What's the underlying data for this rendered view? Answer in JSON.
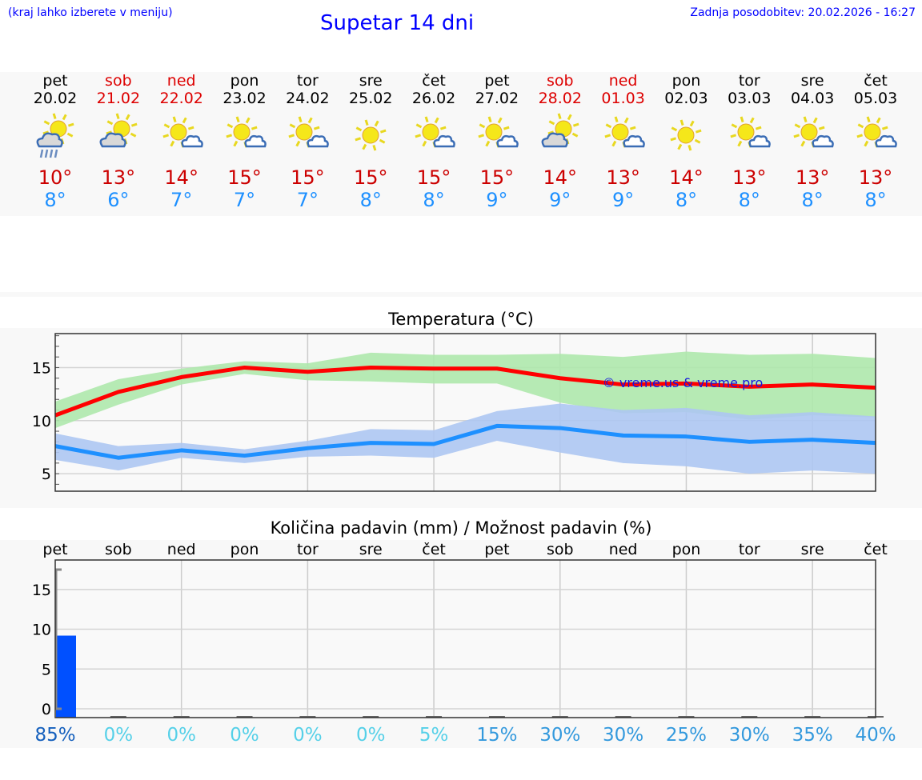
{
  "header": {
    "hint": "(kraj lahko izberete v meniju)",
    "title": "Supetar 14 dni",
    "updated": "Zadnja posodobitev: 20.02.2026 - 16:27"
  },
  "days": [
    {
      "name": "pet",
      "date": "20.02",
      "weekend": false,
      "icon": "sun-cloud-rain-icon",
      "max": "10°",
      "min": "8°",
      "precip_pct": "85%"
    },
    {
      "name": "sob",
      "date": "21.02",
      "weekend": true,
      "icon": "sun-cloudy-icon",
      "max": "13°",
      "min": "6°",
      "precip_pct": "0%"
    },
    {
      "name": "ned",
      "date": "22.02",
      "weekend": true,
      "icon": "sun-small-cloud-icon",
      "max": "14°",
      "min": "7°",
      "precip_pct": "0%"
    },
    {
      "name": "pon",
      "date": "23.02",
      "weekend": false,
      "icon": "sun-small-cloud-icon",
      "max": "15°",
      "min": "7°",
      "precip_pct": "0%"
    },
    {
      "name": "tor",
      "date": "24.02",
      "weekend": false,
      "icon": "sun-small-cloud-icon",
      "max": "15°",
      "min": "7°",
      "precip_pct": "0%"
    },
    {
      "name": "sre",
      "date": "25.02",
      "weekend": false,
      "icon": "sun-icon",
      "max": "15°",
      "min": "8°",
      "precip_pct": "0%"
    },
    {
      "name": "čet",
      "date": "26.02",
      "weekend": false,
      "icon": "sun-small-cloud-icon",
      "max": "15°",
      "min": "8°",
      "precip_pct": "5%"
    },
    {
      "name": "pet",
      "date": "27.02",
      "weekend": false,
      "icon": "sun-small-cloud-icon",
      "max": "15°",
      "min": "9°",
      "precip_pct": "15%"
    },
    {
      "name": "sob",
      "date": "28.02",
      "weekend": true,
      "icon": "sun-cloudy-icon",
      "max": "14°",
      "min": "9°",
      "precip_pct": "30%"
    },
    {
      "name": "ned",
      "date": "01.03",
      "weekend": true,
      "icon": "sun-small-cloud-icon",
      "max": "13°",
      "min": "9°",
      "precip_pct": "30%"
    },
    {
      "name": "pon",
      "date": "02.03",
      "weekend": false,
      "icon": "sun-icon",
      "max": "14°",
      "min": "8°",
      "precip_pct": "25%"
    },
    {
      "name": "tor",
      "date": "03.03",
      "weekend": false,
      "icon": "sun-small-cloud-icon",
      "max": "13°",
      "min": "8°",
      "precip_pct": "30%"
    },
    {
      "name": "sre",
      "date": "04.03",
      "weekend": false,
      "icon": "sun-small-cloud-icon",
      "max": "13°",
      "min": "8°",
      "precip_pct": "35%"
    },
    {
      "name": "čet",
      "date": "05.03",
      "weekend": false,
      "icon": "sun-small-cloud-icon",
      "max": "13°",
      "min": "8°",
      "precip_pct": "40%"
    }
  ],
  "colors": {
    "max": "#ff0000",
    "max_band": "#aee8ac",
    "min": "#1e90ff",
    "min_band": "#adc6f2",
    "bar": "#0050ff"
  },
  "chart_data": [
    {
      "type": "line",
      "title": "Temperatura (°C)",
      "ylim": [
        3.35,
        18.2
      ],
      "yticks": [
        5,
        10,
        15
      ],
      "watermark": "© vreme.us & vreme.pro",
      "series": [
        {
          "name": "max",
          "values": [
            10.5,
            12.7,
            14.1,
            15.0,
            14.6,
            15.0,
            14.9,
            14.9,
            14.0,
            13.4,
            13.5,
            13.2,
            13.4,
            13.1
          ],
          "band_high": [
            11.8,
            13.9,
            14.9,
            15.6,
            15.4,
            16.4,
            16.2,
            16.2,
            16.3,
            16.0,
            16.5,
            16.2,
            16.3,
            15.9
          ],
          "band_low": [
            9.3,
            11.5,
            13.4,
            14.4,
            13.8,
            13.7,
            13.5,
            13.5,
            11.7,
            10.7,
            10.8,
            10.1,
            10.5,
            10.3
          ]
        },
        {
          "name": "min",
          "values": [
            7.6,
            6.5,
            7.2,
            6.7,
            7.4,
            7.9,
            7.8,
            9.5,
            9.3,
            8.6,
            8.5,
            8.0,
            8.2,
            7.9
          ],
          "band_high": [
            8.8,
            7.6,
            7.9,
            7.3,
            8.1,
            9.2,
            9.1,
            10.9,
            11.6,
            11.0,
            11.2,
            10.5,
            10.8,
            10.4
          ],
          "band_low": [
            6.3,
            5.3,
            6.5,
            6.0,
            6.6,
            6.7,
            6.5,
            8.1,
            7.0,
            6.0,
            5.7,
            5.0,
            5.3,
            5.0
          ]
        }
      ]
    },
    {
      "type": "bar",
      "title": "Količina padavin (mm) / Možnost padavin (%)",
      "ylim": [
        -1.1,
        18.7
      ],
      "yticks": [
        0,
        5,
        10,
        15
      ],
      "values": [
        9.2,
        0,
        0,
        0,
        0,
        0,
        0,
        0,
        0,
        0,
        0,
        0,
        0,
        0
      ],
      "error_high": 17.5,
      "error_low": 0
    }
  ]
}
